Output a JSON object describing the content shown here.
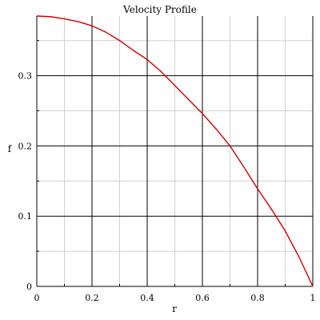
{
  "chart_data": {
    "type": "line",
    "title": "Velocity Profile",
    "xlabel": "r",
    "ylabel": "f",
    "xlim": [
      0,
      1
    ],
    "ylim": [
      0,
      0.385
    ],
    "xticks": [
      0,
      0.2,
      0.4,
      0.6,
      0.8,
      1
    ],
    "xtick_labels": [
      "0",
      "0.2",
      "0.4",
      "0.6",
      "0.8",
      "1"
    ],
    "yticks": [
      0,
      0.1,
      0.2,
      0.3
    ],
    "ytick_labels": [
      "0",
      "0.1",
      "0.2",
      "0.3"
    ],
    "grid": true,
    "series": [
      {
        "color": "#cc0000",
        "x": [
          0,
          0.05,
          0.1,
          0.15,
          0.2,
          0.25,
          0.3,
          0.35,
          0.4,
          0.45,
          0.5,
          0.55,
          0.6,
          0.65,
          0.7,
          0.75,
          0.8,
          0.85,
          0.9,
          0.95,
          1
        ],
        "y": [
          0.385,
          0.384,
          0.381,
          0.377,
          0.371,
          0.362,
          0.35,
          0.336,
          0.323,
          0.306,
          0.286,
          0.266,
          0.246,
          0.224,
          0.2,
          0.17,
          0.139,
          0.11,
          0.079,
          0.042,
          0
        ]
      }
    ],
    "colors": {
      "grid_major": "#000000",
      "grid_minor": "#d0d0d0",
      "line": "#cc0000"
    }
  }
}
